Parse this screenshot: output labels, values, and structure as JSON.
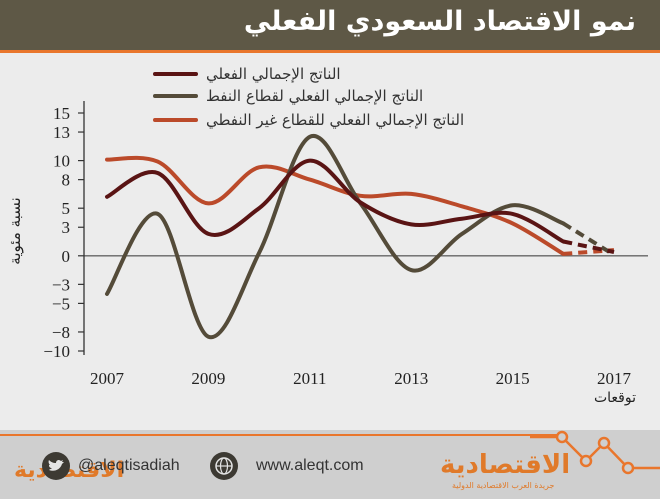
{
  "header": {
    "title": "نمو الاقتصاد السعودي الفعلي"
  },
  "footer": {
    "twitter_handle": "@aleqtisadiah",
    "website": "www.aleqt.com",
    "brand_left": "الاقتصادية",
    "brand_right": "الاقتصادية",
    "brand_tagline": "جريدة العرب الاقتصادية الدولية",
    "icons": [
      "twitter-bird-icon",
      "website-globe-icon"
    ]
  },
  "chart_data": {
    "type": "line",
    "title": "نمو الاقتصاد السعودي الفعلي",
    "xlabel": "",
    "ylabel": "نسبة مئوية",
    "x_tick_labels": [
      "2007",
      "2009",
      "2011",
      "2013",
      "2015",
      "2017"
    ],
    "forecast_label": "توقعات",
    "ylim": [
      -11,
      15
    ],
    "y_ticks": [
      15,
      13,
      10,
      8,
      5,
      3,
      0,
      -3,
      -5,
      -8,
      -10
    ],
    "y_tick_labels": [
      "15",
      "13",
      "10",
      "8",
      "5",
      "3",
      "0",
      "−3",
      "−5",
      "−8",
      "−10"
    ],
    "grid": "zero-line",
    "legend_position": "top-right",
    "series": [
      {
        "name": "الناتج الإجمالي الفعلي",
        "color": "#5a1414",
        "x": [
          2007,
          2008,
          2009,
          2010,
          2011,
          2012,
          2013,
          2014,
          2015,
          2016
        ],
        "y": [
          6.2,
          8.7,
          2.3,
          5.0,
          10.0,
          5.6,
          3.3,
          3.9,
          4.4,
          1.5
        ],
        "forecast_x": [
          2016,
          2017
        ],
        "forecast_y": [
          1.5,
          0.4
        ]
      },
      {
        "name": "الناتج الإجمالي الفعلي لقطاع النفط",
        "color": "#544b39",
        "x": [
          2007,
          2008,
          2009,
          2010,
          2011,
          2012,
          2013,
          2014,
          2015,
          2016
        ],
        "y": [
          -4.0,
          4.4,
          -8.5,
          0.3,
          12.5,
          5.5,
          -1.5,
          2.3,
          5.3,
          3.4
        ],
        "forecast_x": [
          2016,
          2017
        ],
        "forecast_y": [
          3.4,
          0.1
        ]
      },
      {
        "name": "الناتج الإجمالي الفعلي للقطاع غير النفطي",
        "color": "#bb4a2a",
        "x": [
          2007,
          2008,
          2009,
          2010,
          2011,
          2012,
          2013,
          2014,
          2015,
          2016
        ],
        "y": [
          10.1,
          9.9,
          5.5,
          9.3,
          8.0,
          6.3,
          6.5,
          5.2,
          3.4,
          0.2
        ],
        "forecast_x": [
          2016,
          2017
        ],
        "forecast_y": [
          0.2,
          0.6
        ]
      }
    ]
  }
}
